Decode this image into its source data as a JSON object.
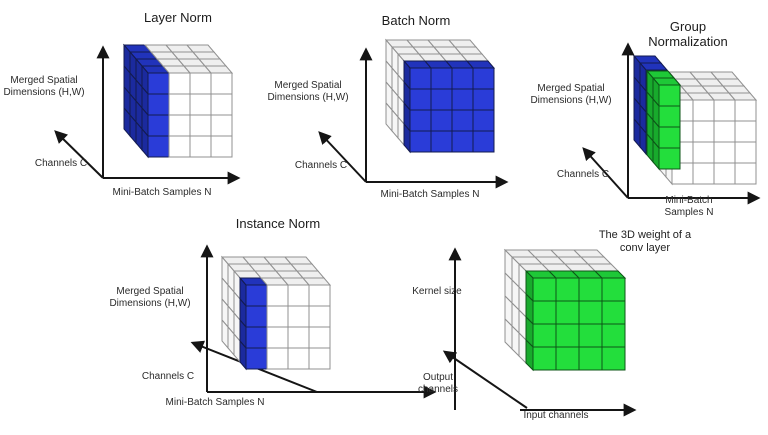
{
  "page": {
    "background": "#ffffff"
  },
  "palette": {
    "blue_front": "#2a3cd8",
    "blue_top": "#2133bb",
    "blue_left": "#1b2a9e",
    "blue_stroke": "#131b4f",
    "green_front": "#23de3c",
    "green_top": "#1ec837",
    "green_left": "#18aa2c",
    "green_stroke": "#0d5517",
    "white_front": "#ffffff",
    "white_top": "#efefef",
    "white_left": "#f6f6f6",
    "white_stroke": "#909090",
    "axis_color": "#151515"
  },
  "figures": [
    {
      "id": "layer-norm",
      "title": "Layer Norm",
      "highlight": "layer",
      "highlight_desc": "one mini-batch sample slice (all channels, all spatial positions) colored blue",
      "highlight_colors": [
        "blue"
      ],
      "labels": {
        "vertical": "Merged Spatial\nDimensions (H,W)",
        "depth": "Channels C",
        "horizontal": "Mini-Batch Samples N"
      }
    },
    {
      "id": "batch-norm",
      "title": "Batch Norm",
      "highlight": "batch",
      "highlight_desc": "one channel slice (all samples, all spatial positions) colored blue",
      "highlight_colors": [
        "blue"
      ],
      "labels": {
        "vertical": "Merged Spatial\nDimensions (H,W)",
        "depth": "Channels C",
        "horizontal": "Mini-Batch Samples N"
      }
    },
    {
      "id": "group-norm",
      "title": "Group Normalization",
      "highlight": "group",
      "highlight_desc": "one sample with channels split into two groups: back group blue, front group green",
      "highlight_colors": [
        "blue",
        "green"
      ],
      "labels": {
        "vertical": "Merged Spatial\nDimensions (H,W)",
        "depth": "Channels C",
        "horizontal": "Mini-Batch Samples N"
      }
    },
    {
      "id": "instance-norm",
      "title": "Instance Norm",
      "highlight": "instance",
      "highlight_desc": "one sample and one channel (all spatial positions) colored blue",
      "highlight_colors": [
        "blue"
      ],
      "labels": {
        "vertical": "Merged Spatial\nDimensions (H,W)",
        "depth": "Channels C",
        "horizontal": "Mini-Batch Samples N"
      }
    },
    {
      "id": "conv-weight",
      "title": "The 3D weight of a\nconv layer",
      "highlight": "conv",
      "highlight_desc": "front output-channel slice of the weight volume colored green",
      "highlight_colors": [
        "green"
      ],
      "labels": {
        "vertical": "Kernel size",
        "depth": "Output\nchannels",
        "horizontal": "Input channels"
      }
    }
  ]
}
